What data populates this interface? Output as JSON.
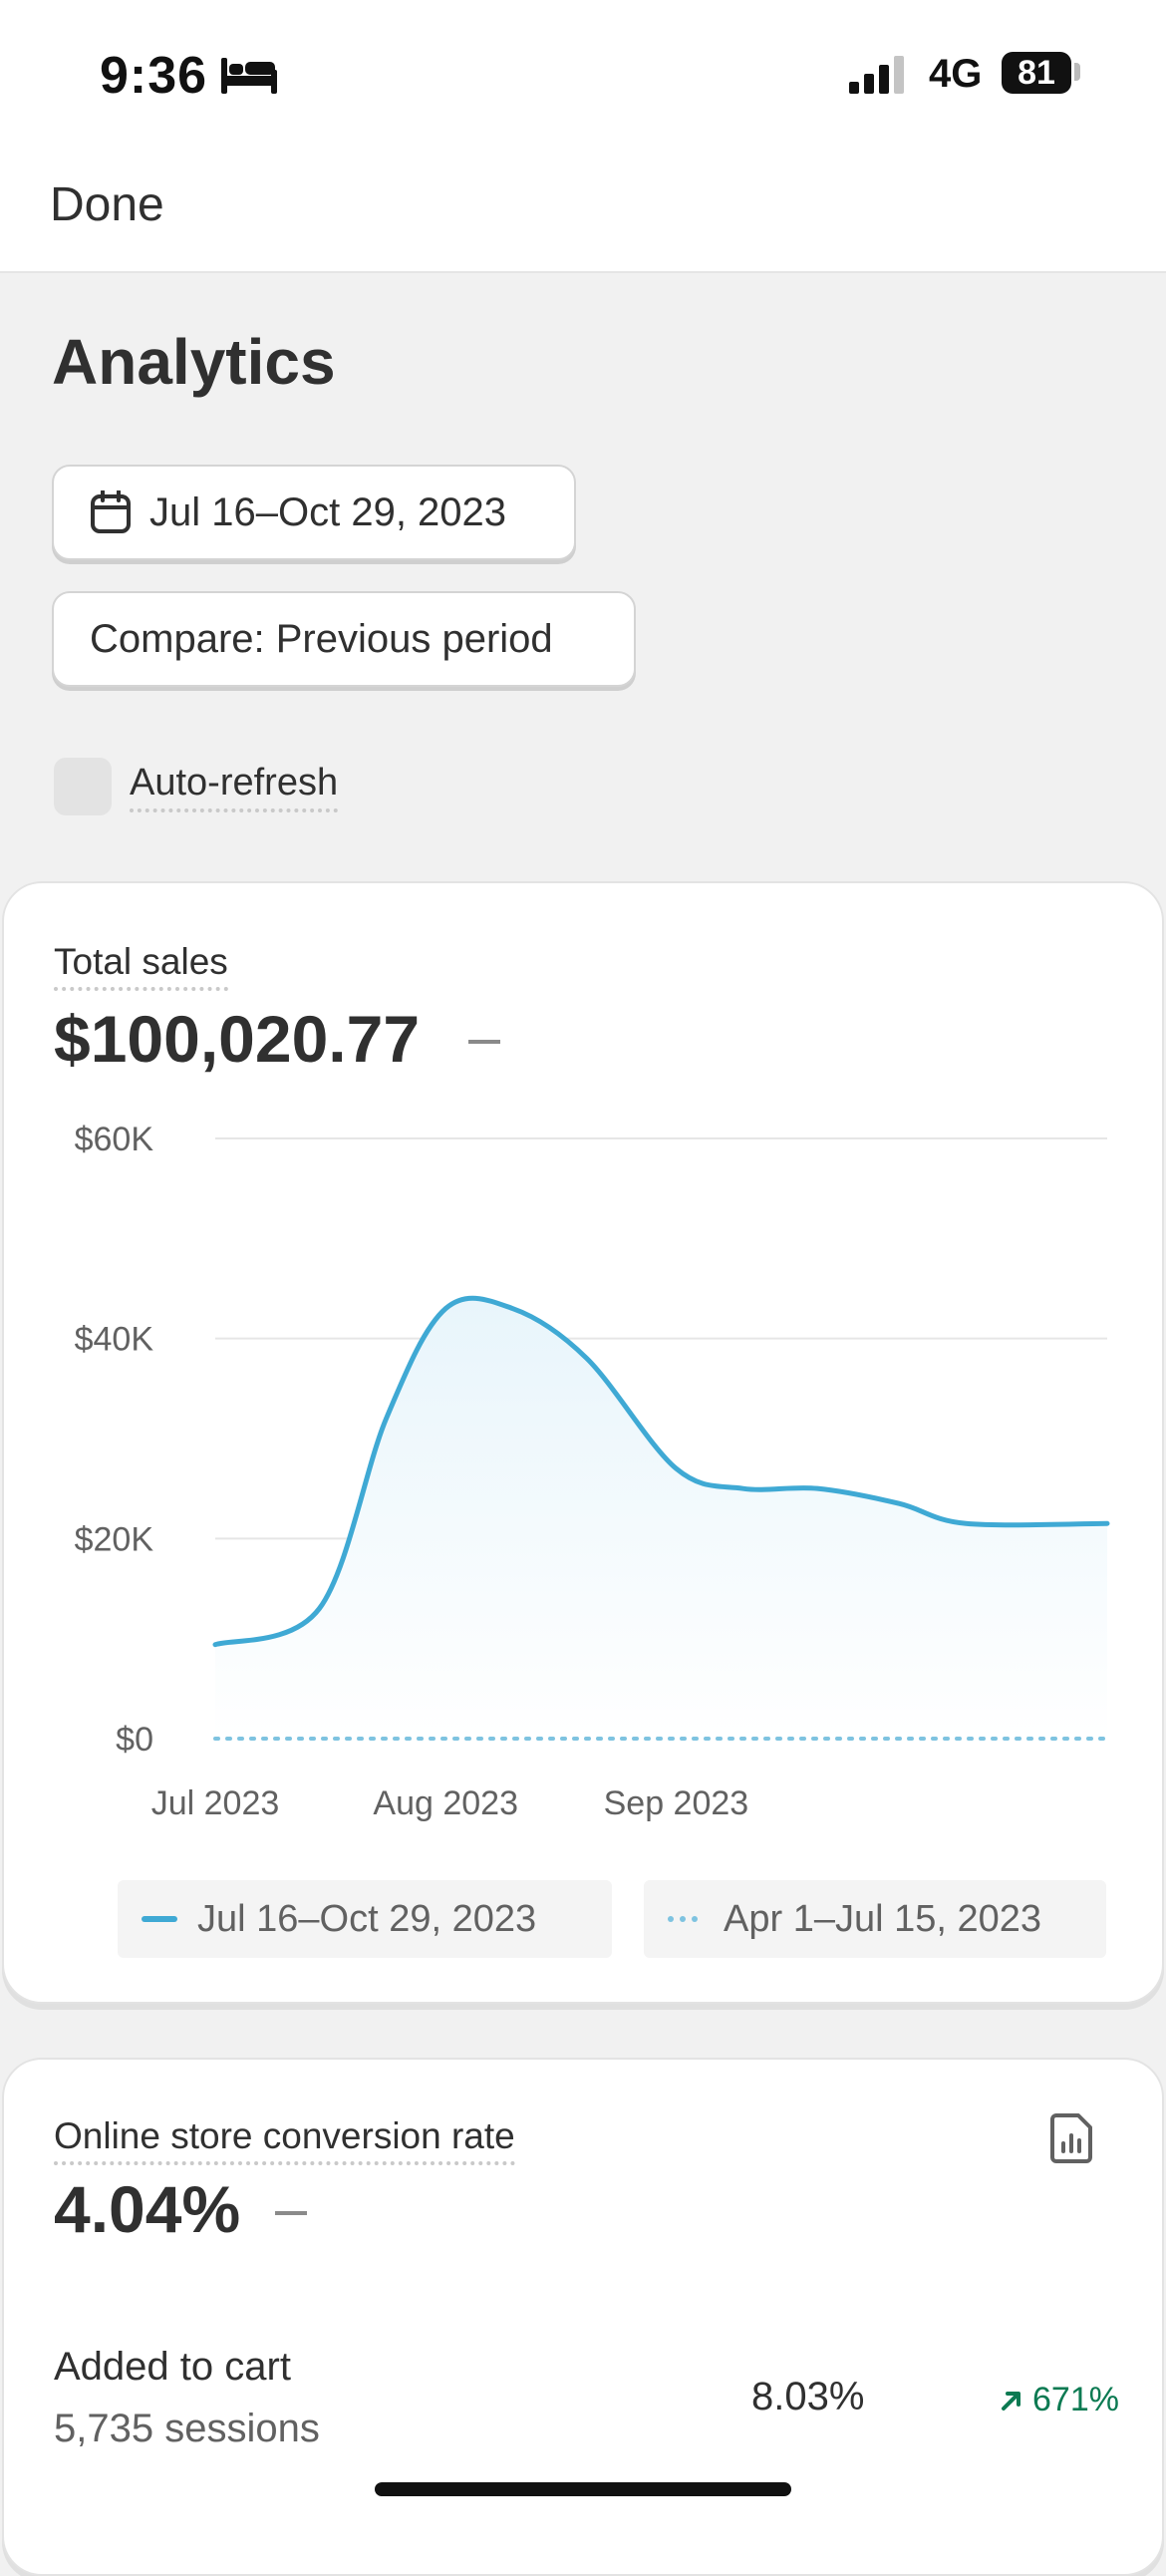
{
  "status_bar": {
    "time": "9:36",
    "network": "4G",
    "battery": "81"
  },
  "nav": {
    "done_label": "Done"
  },
  "page": {
    "title": "Analytics",
    "date_range": "Jul 16–Oct 29, 2023",
    "compare": "Compare: Previous period",
    "auto_refresh_label": "Auto-refresh",
    "auto_refresh_checked": false
  },
  "total_sales": {
    "label": "Total sales",
    "value": "$100,020.77",
    "legend": [
      "Jul 16–Oct 29, 2023",
      "Apr 1–Jul 15, 2023"
    ]
  },
  "chart_data": {
    "type": "line",
    "title": "Total sales",
    "y_ticks": [
      "$60K",
      "$40K",
      "$20K",
      "$0"
    ],
    "ylim": [
      0,
      60000
    ],
    "x_ticks": [
      "Jul 2023",
      "Aug 2023",
      "Sep 2023"
    ],
    "series": [
      {
        "name": "Jul 16–Oct 29, 2023",
        "style": "solid",
        "color": "#3fa9d4",
        "points": [
          [
            "2023-07-01",
            9400
          ],
          [
            "2023-07-15",
            13000
          ],
          [
            "2023-07-24",
            32000
          ],
          [
            "2023-08-01",
            43000
          ],
          [
            "2023-08-10",
            43000
          ],
          [
            "2023-08-20",
            38000
          ],
          [
            "2023-09-01",
            27000
          ],
          [
            "2023-09-10",
            25000
          ],
          [
            "2023-09-20",
            25000
          ],
          [
            "2023-10-01",
            23500
          ],
          [
            "2023-10-10",
            21500
          ],
          [
            "2023-10-29",
            21500
          ]
        ]
      },
      {
        "name": "Apr 1–Jul 15, 2023",
        "style": "dotted",
        "color": "#7ec3e0",
        "points": [
          [
            "2023-07-01",
            0
          ],
          [
            "2023-10-29",
            0
          ]
        ]
      }
    ],
    "grid": true,
    "legend": "bottom"
  },
  "conversion": {
    "label": "Online store conversion rate",
    "value": "4.04%",
    "rows": [
      {
        "label": "Added to cart",
        "sessions": "5,735 sessions",
        "percent": "8.03%",
        "change": "671%",
        "change_color": "#0c7a52"
      }
    ]
  }
}
